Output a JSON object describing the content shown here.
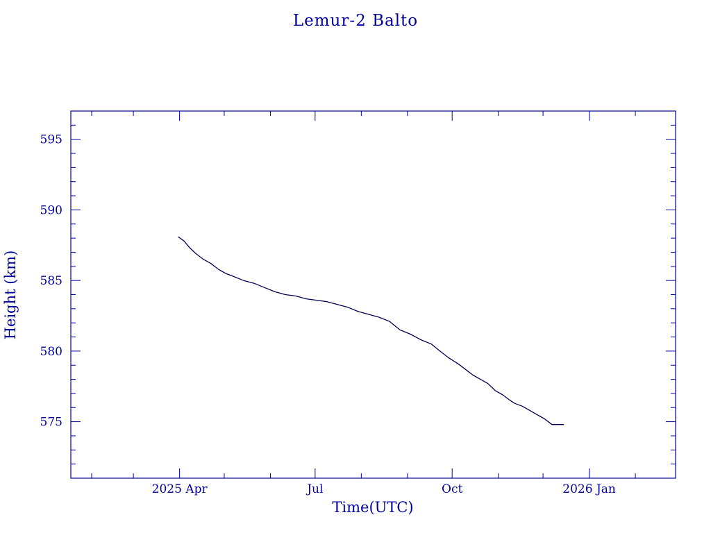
{
  "colors": {
    "ink": "#00009c",
    "line": "#000050",
    "background": "#ffffff"
  },
  "chart_data": {
    "type": "line",
    "title": "Lemur-2 Balto",
    "xlabel": "Time(UTC)",
    "ylabel": "Height (km)",
    "x_axis_type": "time",
    "xlim": [
      "2025-01-18",
      "2026-02-28"
    ],
    "ylim": [
      571,
      597
    ],
    "y_ticks": [
      575,
      580,
      585,
      590,
      595
    ],
    "x_ticks": [
      {
        "date": "2025-04-01",
        "label": "2025 Apr"
      },
      {
        "date": "2025-07-01",
        "label": "Jul"
      },
      {
        "date": "2025-10-01",
        "label": "Oct"
      },
      {
        "date": "2026-01-01",
        "label": "2026 Jan"
      }
    ],
    "grid": false,
    "series": [
      {
        "x": [
          "2025-03-31",
          "2025-04-04",
          "2025-04-08",
          "2025-04-12",
          "2025-04-17",
          "2025-04-22",
          "2025-04-27",
          "2025-05-02",
          "2025-05-07",
          "2025-05-14",
          "2025-05-21",
          "2025-05-28",
          "2025-06-04",
          "2025-06-11",
          "2025-06-18",
          "2025-06-25",
          "2025-07-02",
          "2025-07-09",
          "2025-07-16",
          "2025-07-23",
          "2025-07-30",
          "2025-08-06",
          "2025-08-13",
          "2025-08-20",
          "2025-08-27",
          "2025-09-03",
          "2025-09-10",
          "2025-09-17",
          "2025-09-24",
          "2025-09-29",
          "2025-10-02",
          "2025-10-05",
          "2025-10-10",
          "2025-10-15",
          "2025-10-20",
          "2025-10-25",
          "2025-10-30",
          "2025-11-04",
          "2025-11-09",
          "2025-11-12",
          "2025-11-17",
          "2025-11-22",
          "2025-11-27",
          "2025-12-02",
          "2025-12-07",
          "2025-12-12",
          "2025-12-15"
        ],
        "y": [
          588.1,
          587.8,
          587.3,
          586.9,
          586.5,
          586.2,
          585.8,
          585.5,
          585.3,
          585.0,
          584.8,
          584.5,
          584.2,
          584.0,
          583.9,
          583.7,
          583.6,
          583.5,
          583.3,
          583.1,
          582.8,
          582.6,
          582.4,
          582.1,
          581.5,
          581.2,
          580.8,
          580.5,
          579.9,
          579.5,
          579.3,
          579.1,
          578.7,
          578.3,
          578.0,
          577.7,
          577.2,
          576.9,
          576.5,
          576.3,
          576.1,
          575.8,
          575.5,
          575.2,
          574.8,
          574.8,
          574.8
        ]
      }
    ]
  }
}
